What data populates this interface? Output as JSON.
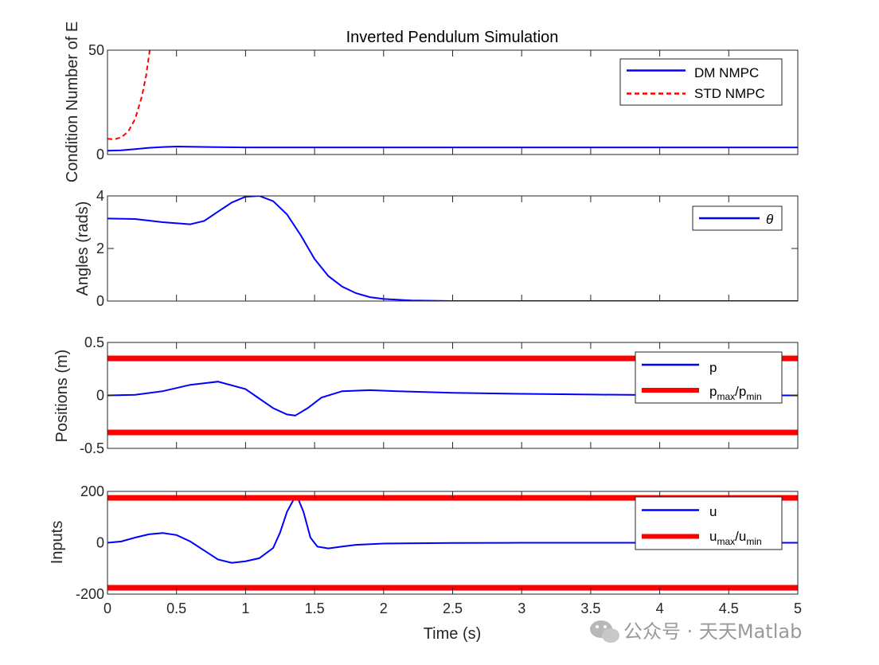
{
  "watermark": "公众号 · 天天Matlab",
  "colors": {
    "blue": "#0000ff",
    "red": "#ff0000",
    "axis": "#262626"
  },
  "chart_data": [
    {
      "type": "line",
      "title": "Inverted Pendulum Simulation",
      "xlabel": "",
      "ylabel": "Condition Number of E",
      "xlim": [
        0,
        5
      ],
      "ylim": [
        0,
        50
      ],
      "yticks": [
        0,
        50
      ],
      "yticklabels": [
        "0",
        "50"
      ],
      "legend": "top-right",
      "series": [
        {
          "name": "DM NMPC",
          "style": "solid",
          "color": "#0000ff",
          "x": [
            0,
            0.1,
            0.2,
            0.3,
            0.4,
            0.5,
            0.6,
            0.8,
            1.0,
            1.5,
            2.0,
            3.0,
            4.0,
            5.0
          ],
          "y": [
            1.8,
            2.0,
            2.6,
            3.2,
            3.6,
            3.8,
            3.7,
            3.5,
            3.4,
            3.4,
            3.4,
            3.4,
            3.4,
            3.4
          ]
        },
        {
          "name": "STD NMPC",
          "style": "dashed",
          "color": "#ff0000",
          "x": [
            0,
            0.05,
            0.1,
            0.15,
            0.2,
            0.25,
            0.28,
            0.31
          ],
          "y": [
            7.5,
            7.3,
            8.2,
            11,
            17,
            28,
            38,
            52
          ]
        }
      ]
    },
    {
      "type": "line",
      "title": "",
      "xlabel": "",
      "ylabel": "Angles (rads)",
      "xlim": [
        0,
        5
      ],
      "ylim": [
        0,
        4
      ],
      "yticks": [
        0,
        2,
        4
      ],
      "yticklabels": [
        "0",
        "2",
        "4"
      ],
      "legend": "top-right",
      "series": [
        {
          "name": "θ",
          "style": "solid",
          "color": "#0000ff",
          "x": [
            0,
            0.2,
            0.4,
            0.6,
            0.7,
            0.8,
            0.9,
            1.0,
            1.1,
            1.2,
            1.3,
            1.4,
            1.5,
            1.6,
            1.7,
            1.8,
            1.9,
            2.0,
            2.2,
            2.5,
            3.0,
            4.0,
            5.0
          ],
          "y": [
            3.14,
            3.12,
            3.0,
            2.92,
            3.05,
            3.4,
            3.75,
            3.97,
            4.0,
            3.8,
            3.3,
            2.5,
            1.6,
            0.95,
            0.55,
            0.3,
            0.15,
            0.08,
            0.02,
            0.0,
            0.0,
            0.0,
            0.0
          ]
        }
      ]
    },
    {
      "type": "line",
      "title": "",
      "xlabel": "",
      "ylabel": "Positions (m)",
      "xlim": [
        0,
        5
      ],
      "ylim": [
        -0.5,
        0.5
      ],
      "yticks": [
        -0.5,
        0,
        0.5
      ],
      "yticklabels": [
        "-0.5",
        "0",
        "0.5"
      ],
      "legend": "top-right",
      "series": [
        {
          "name": "p",
          "style": "solid",
          "color": "#0000ff",
          "x": [
            0,
            0.2,
            0.4,
            0.6,
            0.8,
            1.0,
            1.1,
            1.2,
            1.3,
            1.36,
            1.45,
            1.55,
            1.7,
            1.9,
            2.1,
            2.5,
            3.0,
            3.5,
            4.0,
            4.5,
            5.0
          ],
          "y": [
            0.0,
            0.005,
            0.04,
            0.1,
            0.13,
            0.06,
            -0.03,
            -0.12,
            -0.18,
            -0.19,
            -0.12,
            -0.02,
            0.04,
            0.05,
            0.04,
            0.025,
            0.015,
            0.008,
            0.003,
            0.001,
            0.0
          ]
        },
        {
          "name": "p_max/p_min",
          "style": "thick",
          "color": "#ff0000",
          "hlines": [
            0.35,
            -0.35
          ]
        }
      ]
    },
    {
      "type": "line",
      "title": "",
      "xlabel": "Time (s)",
      "ylabel": "Inputs",
      "xlim": [
        0,
        5
      ],
      "ylim": [
        -200,
        200
      ],
      "xticks": [
        0,
        0.5,
        1,
        1.5,
        2,
        2.5,
        3,
        3.5,
        4,
        4.5,
        5
      ],
      "xticklabels": [
        "0",
        "0.5",
        "1",
        "1.5",
        "2",
        "2.5",
        "3",
        "3.5",
        "4",
        "4.5",
        "5"
      ],
      "yticks": [
        -200,
        0,
        200
      ],
      "yticklabels": [
        "-200",
        "0",
        "200"
      ],
      "legend": "top-right",
      "series": [
        {
          "name": "u",
          "style": "solid",
          "color": "#0000ff",
          "x": [
            0,
            0.1,
            0.2,
            0.3,
            0.4,
            0.5,
            0.6,
            0.7,
            0.8,
            0.9,
            1.0,
            1.1,
            1.2,
            1.25,
            1.3,
            1.35,
            1.38,
            1.42,
            1.47,
            1.52,
            1.6,
            1.7,
            1.8,
            2.0,
            2.5,
            3.0,
            4.0,
            5.0
          ],
          "y": [
            0,
            5,
            20,
            33,
            38,
            30,
            5,
            -30,
            -65,
            -78,
            -72,
            -60,
            -20,
            40,
            120,
            170,
            172,
            120,
            20,
            -15,
            -22,
            -15,
            -8,
            -3,
            -1,
            0,
            0,
            0
          ]
        },
        {
          "name": "u_max/u_min",
          "style": "thick",
          "color": "#ff0000",
          "hlines": [
            175,
            -175
          ]
        }
      ]
    }
  ]
}
